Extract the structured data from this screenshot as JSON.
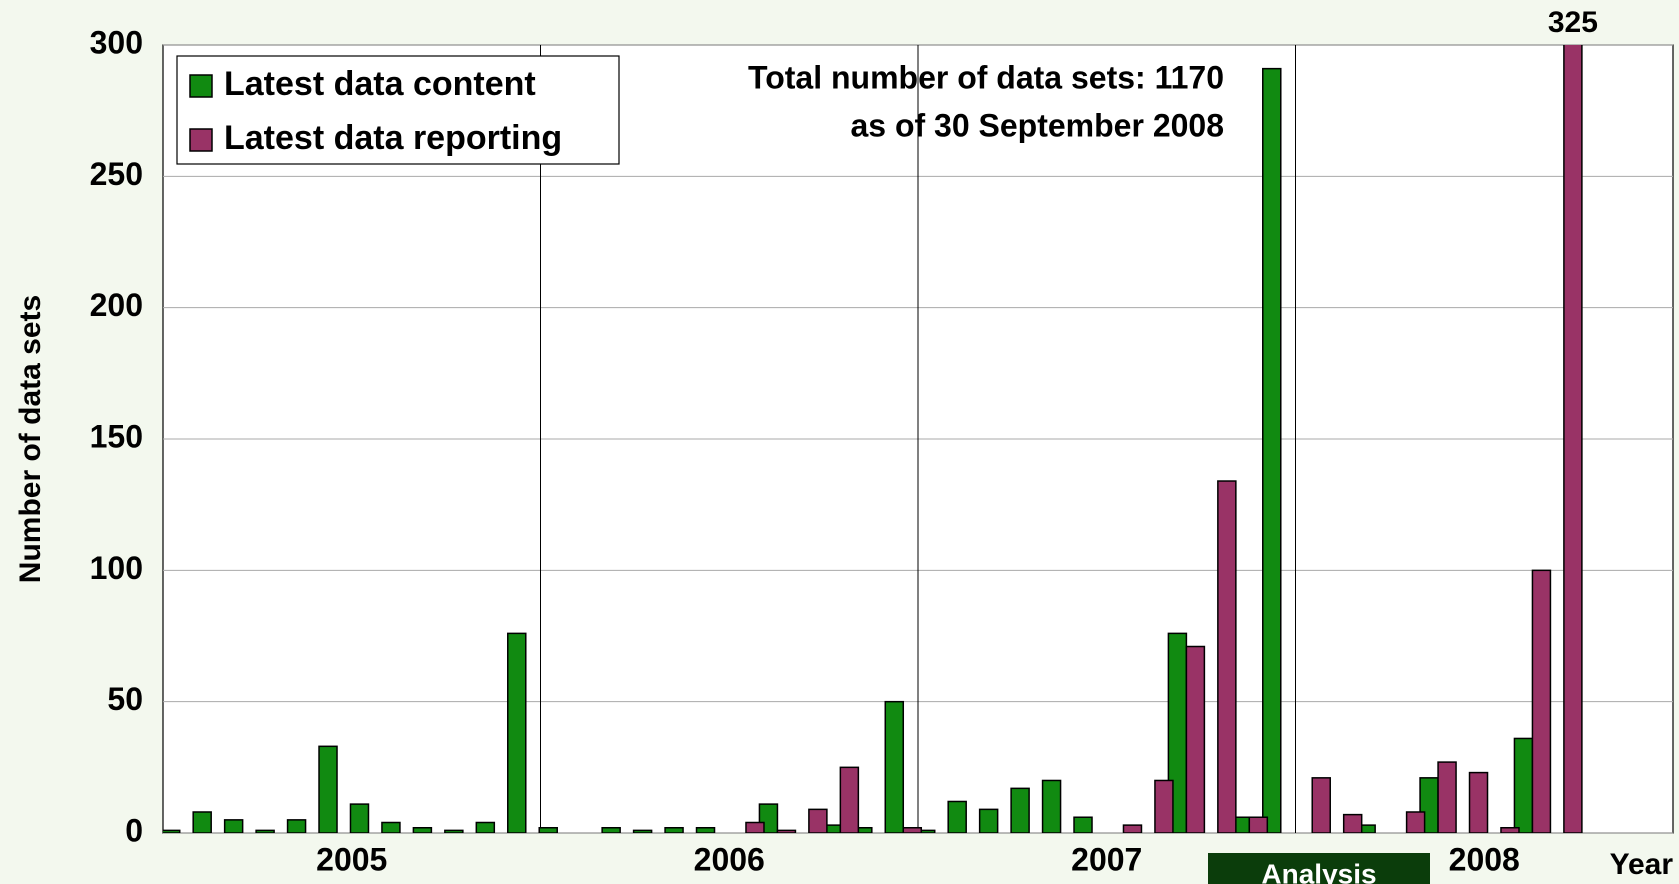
{
  "chart_data": {
    "type": "bar",
    "categories": [
      null,
      null,
      null,
      null,
      null,
      null,
      null,
      null,
      null,
      null,
      null,
      null,
      null,
      null,
      null,
      null,
      null,
      null,
      null,
      null,
      null,
      null,
      null,
      null,
      null,
      null,
      null,
      null,
      null,
      null,
      null,
      null,
      null,
      null,
      null,
      null,
      null,
      null,
      null,
      null,
      null,
      null,
      null,
      null,
      null,
      null,
      null,
      null
    ],
    "groups": [
      "2005",
      "2006",
      "2007",
      "2008"
    ],
    "x_label": "Year",
    "y_label": "Number of data sets",
    "annotations": [
      "Total number of data sets:  1170",
      "as of 30 September 2008"
    ],
    "button": "Analysis",
    "series": [
      {
        "name": "Latest data content",
        "color": "#118a11",
        "values": [
          1,
          8,
          5,
          1,
          5,
          33,
          11,
          4,
          2,
          1,
          4,
          76,
          2,
          0,
          2,
          1,
          2,
          2,
          0,
          11,
          0,
          3,
          2,
          50,
          1,
          12,
          9,
          17,
          20,
          6,
          0,
          0,
          76,
          0,
          6,
          291,
          0,
          0,
          3,
          0,
          21,
          0,
          0,
          36,
          0,
          0,
          0,
          0
        ]
      },
      {
        "name": "Latest data reporting",
        "color": "#993366",
        "values": [
          0,
          0,
          0,
          0,
          0,
          0,
          0,
          0,
          0,
          0,
          0,
          0,
          0,
          0,
          0,
          0,
          0,
          0,
          4,
          1,
          9,
          25,
          0,
          2,
          0,
          0,
          0,
          0,
          0,
          0,
          3,
          20,
          71,
          134,
          6,
          0,
          21,
          7,
          0,
          8,
          27,
          23,
          2,
          100,
          325,
          0,
          0,
          0
        ],
        "value_labels": [
          null,
          null,
          null,
          null,
          null,
          null,
          null,
          null,
          null,
          null,
          null,
          null,
          null,
          null,
          null,
          null,
          null,
          null,
          null,
          null,
          null,
          null,
          null,
          null,
          null,
          null,
          null,
          null,
          null,
          null,
          null,
          null,
          null,
          null,
          null,
          null,
          null,
          null,
          null,
          null,
          null,
          null,
          null,
          null,
          "325",
          null,
          null,
          null
        ]
      }
    ],
    "ylim": [
      0,
      300
    ],
    "yticks": [
      0,
      50,
      100,
      150,
      200,
      250,
      300
    ],
    "grid": true,
    "legend": "top-left"
  }
}
